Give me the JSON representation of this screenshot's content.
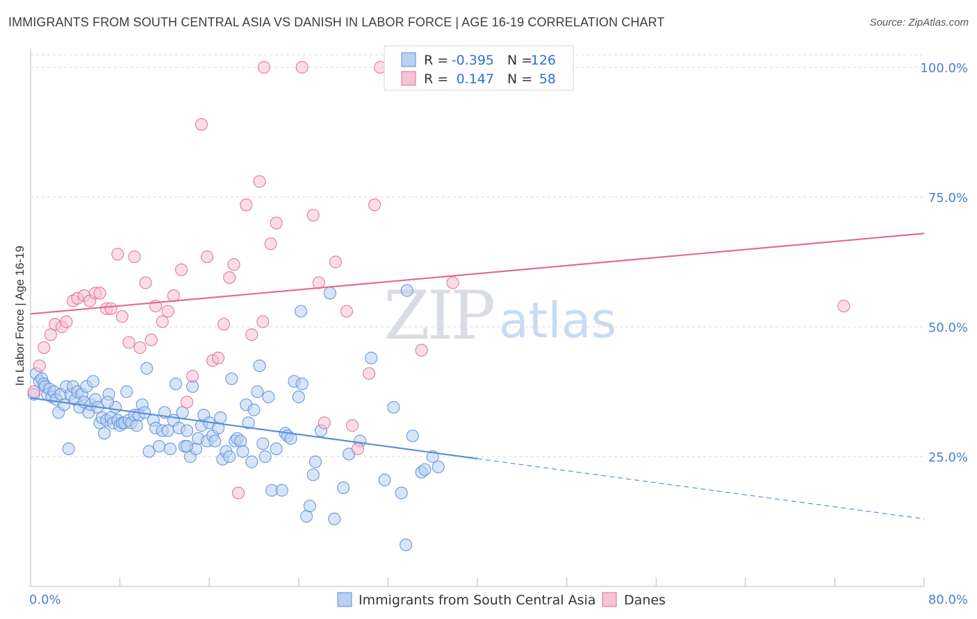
{
  "title": "IMMIGRANTS FROM SOUTH CENTRAL ASIA VS DANISH IN LABOR FORCE | AGE 16-19 CORRELATION CHART",
  "source": "Source: ZipAtlas.com",
  "watermark": {
    "zip": "ZIP",
    "atlas": "atlas"
  },
  "colors": {
    "blue": "#5b8fd9",
    "blue_fill": "#b8d0f2",
    "pink": "#e06c93",
    "pink_fill": "#f5c3d3",
    "axis_text": "#4a7fd0",
    "grid": "#d8d8d8"
  },
  "legend": {
    "rows": [
      {
        "r_label": "R =",
        "r_value": "-0.395",
        "n_label": "N =",
        "n_value": "126"
      },
      {
        "r_label": "R =",
        "r_value": "0.147",
        "n_label": "N =",
        "n_value": "58"
      }
    ]
  },
  "bottom_legend": [
    "Immigrants from South Central Asia",
    "Danes"
  ],
  "chart_data": {
    "type": "scatter",
    "title": "IMMIGRANTS FROM SOUTH CENTRAL ASIA VS DANISH IN LABOR FORCE | AGE 16-19 CORRELATION CHART",
    "xlabel": "",
    "ylabel": "In Labor Force | Age 16-19",
    "xlim": [
      0,
      80
    ],
    "ylim": [
      0,
      102
    ],
    "x_tick_labels": [
      "0.0%",
      "80.0%"
    ],
    "y_ticks": [
      25,
      50,
      75,
      100
    ],
    "y_tick_labels": [
      "25.0%",
      "50.0%",
      "75.0%",
      "100.0%"
    ],
    "grid": true,
    "legend_position": "top-center",
    "series": [
      {
        "name": "Immigrants from South Central Asia",
        "color": "#5b8fd9",
        "r": -0.395,
        "n": 126,
        "trend": {
          "x0": 0,
          "y0": 36.3,
          "x1": 40,
          "y1": 24.6,
          "dashed_to_x": 80,
          "dashed_to_y": 13.0
        },
        "points": [
          [
            0.3,
            37.0
          ],
          [
            0.5,
            41.0
          ],
          [
            0.8,
            39.5
          ],
          [
            1.0,
            40.0
          ],
          [
            1.2,
            39.0
          ],
          [
            1.3,
            38.5
          ],
          [
            1.5,
            37.0
          ],
          [
            1.7,
            38.0
          ],
          [
            1.9,
            36.5
          ],
          [
            2.1,
            37.5
          ],
          [
            2.3,
            36.0
          ],
          [
            2.5,
            33.5
          ],
          [
            2.7,
            37.0
          ],
          [
            3.0,
            35.0
          ],
          [
            3.2,
            38.5
          ],
          [
            3.4,
            26.5
          ],
          [
            3.6,
            37.0
          ],
          [
            3.8,
            38.5
          ],
          [
            4.0,
            36.0
          ],
          [
            4.2,
            37.5
          ],
          [
            4.4,
            34.5
          ],
          [
            4.6,
            37.0
          ],
          [
            4.8,
            35.5
          ],
          [
            5.0,
            38.5
          ],
          [
            5.2,
            33.5
          ],
          [
            5.4,
            35.0
          ],
          [
            5.6,
            39.5
          ],
          [
            5.8,
            36.0
          ],
          [
            6.0,
            34.5
          ],
          [
            6.2,
            31.5
          ],
          [
            6.4,
            32.5
          ],
          [
            6.6,
            29.5
          ],
          [
            6.8,
            32.0
          ],
          [
            7.0,
            37.0
          ],
          [
            7.2,
            32.5
          ],
          [
            7.4,
            31.5
          ],
          [
            7.6,
            34.5
          ],
          [
            7.8,
            32.0
          ],
          [
            8.0,
            31.0
          ],
          [
            8.2,
            31.5
          ],
          [
            8.4,
            31.5
          ],
          [
            8.6,
            37.5
          ],
          [
            8.8,
            32.0
          ],
          [
            9.0,
            31.5
          ],
          [
            9.3,
            33.0
          ],
          [
            9.5,
            31.0
          ],
          [
            9.7,
            33.0
          ],
          [
            10.0,
            35.0
          ],
          [
            10.2,
            33.5
          ],
          [
            10.4,
            42.0
          ],
          [
            10.6,
            26.0
          ],
          [
            11.0,
            32.0
          ],
          [
            11.2,
            30.5
          ],
          [
            11.5,
            27.0
          ],
          [
            11.8,
            30.0
          ],
          [
            12.0,
            33.5
          ],
          [
            12.3,
            30.0
          ],
          [
            12.5,
            26.5
          ],
          [
            12.8,
            32.0
          ],
          [
            13.0,
            39.0
          ],
          [
            13.3,
            30.5
          ],
          [
            13.6,
            33.5
          ],
          [
            13.8,
            27.0
          ],
          [
            14.0,
            30.0
          ],
          [
            14.3,
            25.0
          ],
          [
            14.5,
            38.5
          ],
          [
            14.8,
            26.5
          ],
          [
            15.0,
            28.5
          ],
          [
            15.3,
            31.0
          ],
          [
            15.5,
            33.0
          ],
          [
            15.8,
            28.0
          ],
          [
            16.0,
            31.5
          ],
          [
            16.3,
            29.0
          ],
          [
            16.5,
            28.0
          ],
          [
            16.8,
            30.5
          ],
          [
            17.0,
            32.5
          ],
          [
            17.2,
            24.5
          ],
          [
            17.5,
            26.0
          ],
          [
            17.8,
            25.0
          ],
          [
            18.0,
            40.0
          ],
          [
            18.3,
            28.0
          ],
          [
            18.5,
            28.5
          ],
          [
            18.8,
            28.0
          ],
          [
            19.0,
            26.0
          ],
          [
            19.3,
            35.0
          ],
          [
            19.5,
            31.5
          ],
          [
            19.8,
            24.0
          ],
          [
            20.0,
            34.0
          ],
          [
            20.3,
            37.5
          ],
          [
            20.5,
            42.5
          ],
          [
            20.8,
            27.5
          ],
          [
            21.0,
            25.0
          ],
          [
            21.3,
            36.5
          ],
          [
            21.6,
            18.5
          ],
          [
            22.0,
            26.5
          ],
          [
            22.5,
            18.5
          ],
          [
            22.8,
            29.5
          ],
          [
            23.0,
            29.0
          ],
          [
            23.3,
            28.5
          ],
          [
            23.6,
            39.5
          ],
          [
            24.0,
            36.5
          ],
          [
            24.3,
            39.0
          ],
          [
            24.7,
            13.5
          ],
          [
            25.0,
            15.5
          ],
          [
            25.3,
            21.5
          ],
          [
            25.5,
            24.0
          ],
          [
            26.0,
            30.0
          ],
          [
            26.8,
            56.5
          ],
          [
            27.2,
            13.0
          ],
          [
            28.0,
            19.0
          ],
          [
            28.5,
            25.5
          ],
          [
            30.5,
            44.0
          ],
          [
            31.7,
            20.5
          ],
          [
            32.5,
            34.5
          ],
          [
            33.2,
            18.0
          ],
          [
            33.6,
            8.0
          ],
          [
            33.7,
            57.0
          ],
          [
            34.2,
            29.0
          ],
          [
            35.0,
            22.0
          ],
          [
            35.3,
            22.5
          ],
          [
            36.0,
            25.0
          ],
          [
            36.5,
            23.0
          ],
          [
            24.2,
            53.0
          ],
          [
            29.5,
            28.0
          ],
          [
            14.0,
            27.0
          ],
          [
            6.9,
            35.5
          ]
        ]
      },
      {
        "name": "Danes",
        "color": "#e06c93",
        "r": 0.147,
        "n": 58,
        "trend": {
          "x0": 0,
          "y0": 52.5,
          "x1": 80,
          "y1": 68.0
        },
        "points": [
          [
            0.3,
            37.5
          ],
          [
            0.8,
            42.5
          ],
          [
            1.2,
            46.0
          ],
          [
            1.8,
            48.5
          ],
          [
            2.2,
            50.5
          ],
          [
            2.8,
            50.0
          ],
          [
            3.2,
            51.0
          ],
          [
            3.8,
            55.0
          ],
          [
            4.2,
            55.5
          ],
          [
            4.8,
            56.0
          ],
          [
            5.3,
            55.0
          ],
          [
            5.8,
            56.5
          ],
          [
            6.2,
            56.5
          ],
          [
            6.8,
            53.5
          ],
          [
            7.2,
            53.5
          ],
          [
            7.8,
            64.0
          ],
          [
            8.2,
            52.0
          ],
          [
            8.8,
            47.0
          ],
          [
            9.3,
            63.5
          ],
          [
            9.8,
            46.0
          ],
          [
            10.3,
            58.5
          ],
          [
            10.8,
            47.5
          ],
          [
            11.2,
            54.0
          ],
          [
            11.8,
            51.0
          ],
          [
            12.3,
            53.0
          ],
          [
            12.8,
            56.0
          ],
          [
            13.5,
            61.0
          ],
          [
            14.0,
            35.5
          ],
          [
            14.5,
            40.5
          ],
          [
            15.3,
            89.0
          ],
          [
            15.8,
            63.5
          ],
          [
            16.3,
            43.5
          ],
          [
            16.8,
            44.0
          ],
          [
            17.3,
            50.5
          ],
          [
            17.8,
            59.5
          ],
          [
            18.2,
            62.0
          ],
          [
            18.6,
            18.0
          ],
          [
            19.3,
            73.5
          ],
          [
            19.8,
            48.5
          ],
          [
            20.5,
            78.0
          ],
          [
            20.8,
            51.0
          ],
          [
            21.5,
            66.0
          ],
          [
            22.0,
            70.0
          ],
          [
            20.9,
            100.0
          ],
          [
            24.3,
            100.0
          ],
          [
            25.3,
            71.5
          ],
          [
            25.8,
            58.5
          ],
          [
            26.3,
            31.5
          ],
          [
            27.3,
            62.5
          ],
          [
            28.3,
            53.0
          ],
          [
            28.8,
            31.0
          ],
          [
            29.3,
            26.5
          ],
          [
            30.3,
            41.0
          ],
          [
            30.8,
            73.5
          ],
          [
            31.3,
            100.0
          ],
          [
            35.0,
            45.5
          ],
          [
            37.8,
            58.5
          ],
          [
            72.8,
            54.0
          ]
        ]
      }
    ]
  }
}
